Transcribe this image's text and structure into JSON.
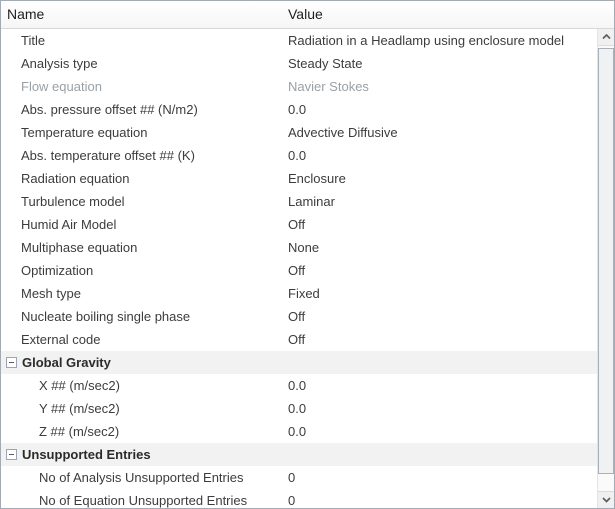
{
  "header": {
    "name_label": "Name",
    "value_label": "Value"
  },
  "rows": [
    {
      "type": "item",
      "name": "Title",
      "value": "Radiation in a Headlamp using enclosure model"
    },
    {
      "type": "item",
      "name": "Analysis type",
      "value": "Steady State"
    },
    {
      "type": "item",
      "name": "Flow equation",
      "value": "Navier Stokes",
      "disabled": true
    },
    {
      "type": "item",
      "name": "Abs. pressure offset ## (N/m2)",
      "value": "0.0"
    },
    {
      "type": "item",
      "name": "Temperature equation",
      "value": "Advective Diffusive"
    },
    {
      "type": "item",
      "name": "Abs. temperature offset ## (K)",
      "value": "0.0"
    },
    {
      "type": "item",
      "name": "Radiation equation",
      "value": "Enclosure"
    },
    {
      "type": "item",
      "name": "Turbulence model",
      "value": "Laminar"
    },
    {
      "type": "item",
      "name": "Humid Air Model",
      "value": "Off"
    },
    {
      "type": "item",
      "name": "Multiphase equation",
      "value": "None"
    },
    {
      "type": "item",
      "name": "Optimization",
      "value": "Off"
    },
    {
      "type": "item",
      "name": "Mesh type",
      "value": "Fixed"
    },
    {
      "type": "item",
      "name": "Nucleate boiling single phase",
      "value": "Off"
    },
    {
      "type": "item",
      "name": "External code",
      "value": "Off"
    },
    {
      "type": "section",
      "label": "Global Gravity",
      "collapse_state": "expanded"
    },
    {
      "type": "item",
      "name": "X ## (m/sec2)",
      "value": "0.0",
      "indent": 2
    },
    {
      "type": "item",
      "name": "Y ## (m/sec2)",
      "value": "0.0",
      "indent": 2
    },
    {
      "type": "item",
      "name": "Z ## (m/sec2)",
      "value": "0.0",
      "indent": 2
    },
    {
      "type": "section",
      "label": "Unsupported Entries",
      "collapse_state": "expanded"
    },
    {
      "type": "item",
      "name": "No of Analysis Unsupported Entries",
      "value": "0",
      "indent": 2
    },
    {
      "type": "item",
      "name": "No of Equation Unsupported Entries",
      "value": "0",
      "indent": 2
    }
  ],
  "scrollbar": {
    "up_icon": "chevron-up",
    "down_icon": "chevron-down"
  },
  "colors": {
    "outer_border": "#a3aab2",
    "section_row_bg": "#f2f2f2",
    "disabled_text": "#9aa0a6",
    "row_text": "#3c3c3c",
    "scrollbar_thumb_border": "#a8b1ba"
  }
}
